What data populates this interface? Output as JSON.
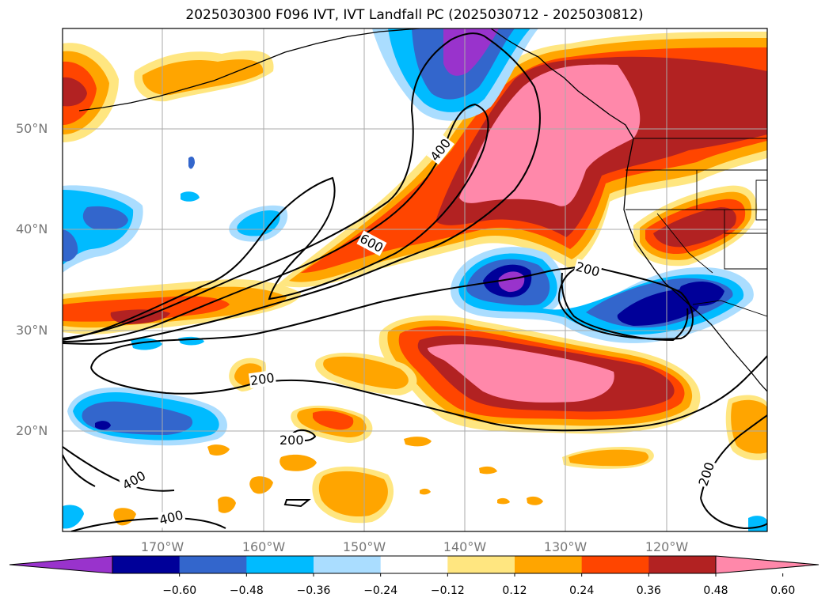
{
  "title": "2025030300 F096 IVT, IVT Landfall PC (2025030712 - 2025030812)",
  "lat_labels": [
    "50°N",
    "40°N",
    "30°N",
    "20°N"
  ],
  "lon_labels": [
    "170°W",
    "160°W",
    "150°W",
    "140°W",
    "130°W",
    "120°W"
  ],
  "contour_labels": [
    "400",
    "600",
    "200",
    "200",
    "200",
    "400",
    "400",
    "200"
  ],
  "colorbar": {
    "tick_labels": [
      "−0.60",
      "−0.48",
      "−0.36",
      "−0.24",
      "−0.12",
      "0.12",
      "0.24",
      "0.36",
      "0.48",
      "0.60"
    ],
    "colors": [
      "#9933cc",
      "#000099",
      "#3366cc",
      "#00bbff",
      "#aaddff",
      "#ffffff",
      "#ffe680",
      "#ffa500",
      "#ff4500",
      "#b22222",
      "#ff88aa"
    ]
  }
}
